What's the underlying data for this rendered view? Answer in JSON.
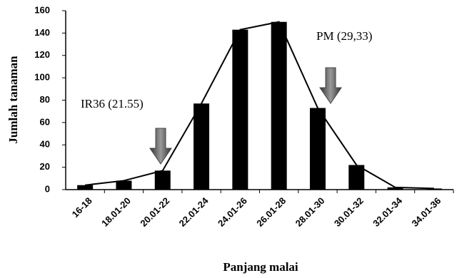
{
  "chart_data": {
    "type": "bar",
    "x_label": "Panjang malai",
    "y_label": "Jumlah tanaman",
    "categories": [
      "16-18",
      "18.01-20",
      "20.01-22",
      "22.01-24",
      "24.01-26",
      "26.01-28",
      "28.01-30",
      "30.01-32",
      "32.01-34",
      "34.01-36"
    ],
    "values": [
      4,
      8,
      17,
      77,
      143,
      150,
      73,
      22,
      2,
      1
    ],
    "color": "#000000",
    "line": true,
    "ylim": [
      0,
      160
    ],
    "yticks": [
      0,
      20,
      40,
      60,
      80,
      100,
      120,
      140,
      160
    ],
    "annotations": [
      "IR36 (21.55)",
      "PM (29,33)"
    ]
  }
}
